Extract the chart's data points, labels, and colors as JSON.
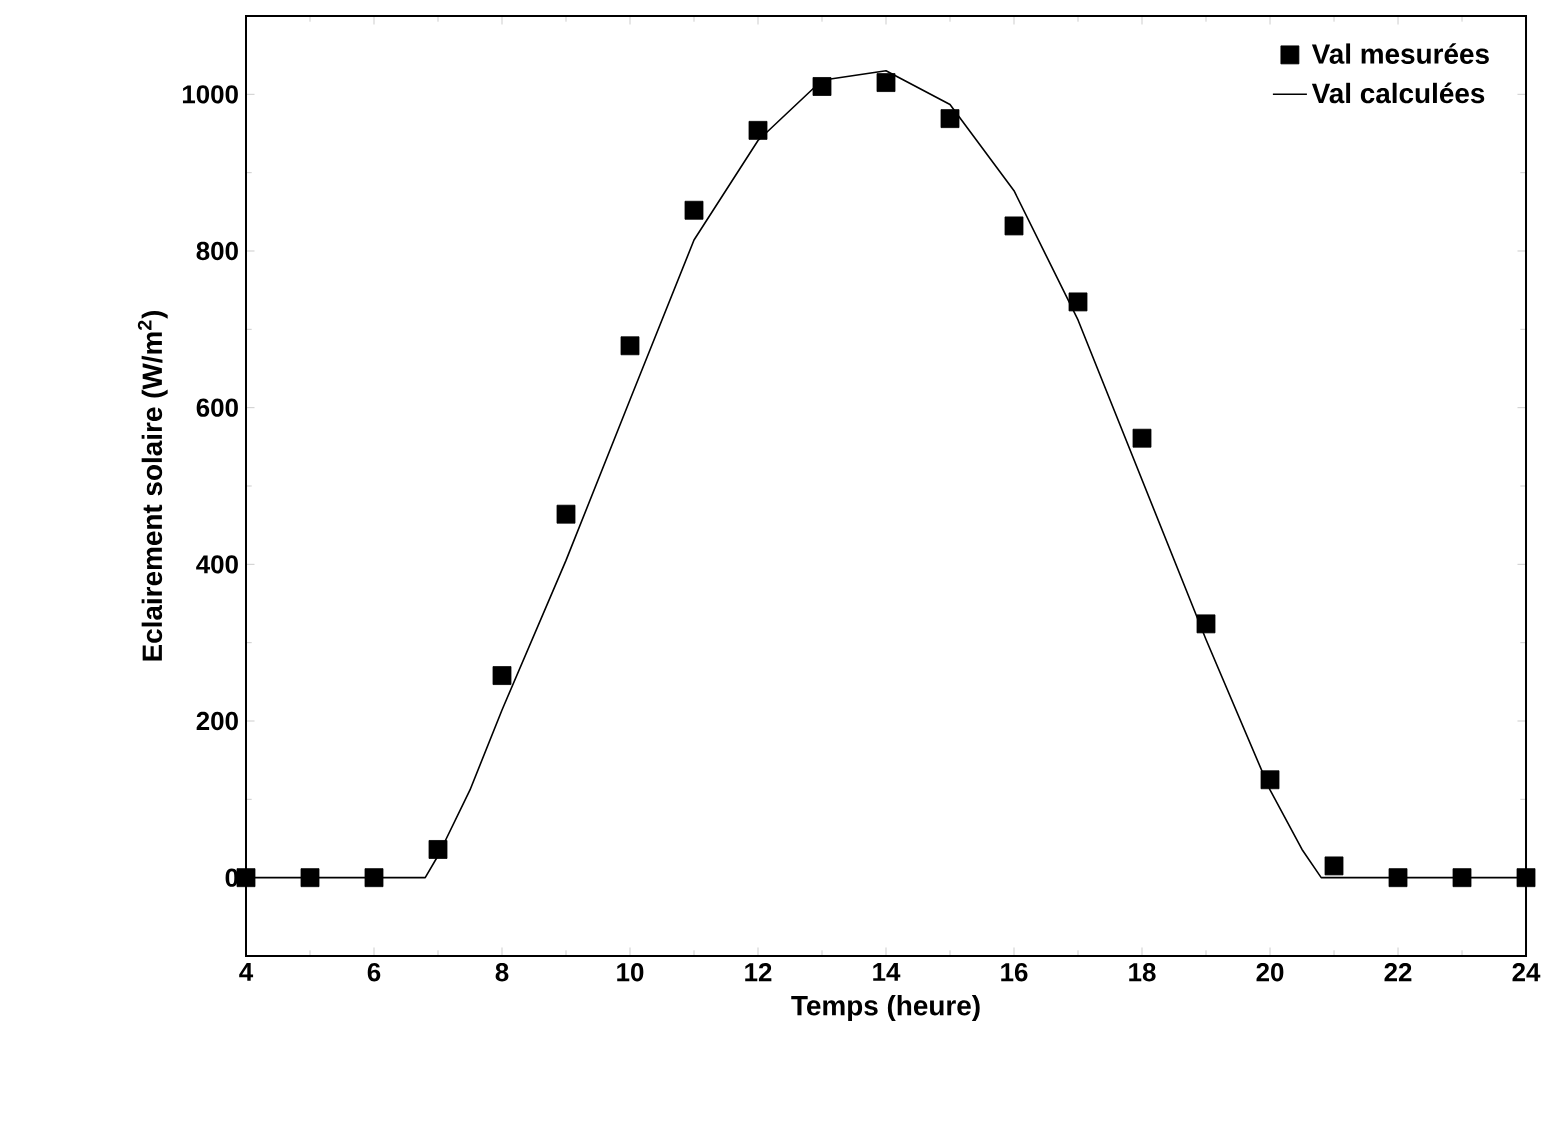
{
  "chart_data": {
    "type": "scatter",
    "xlabel": "Temps (heure)",
    "ylabel": "Eclairement solaire (W/m$^{2}$)",
    "xlim": [
      4,
      24
    ],
    "ylim": [
      -100,
      1100
    ],
    "xticks": [
      4,
      6,
      8,
      10,
      12,
      14,
      16,
      18,
      20,
      22,
      24
    ],
    "yticks": [
      0,
      200,
      400,
      600,
      800,
      1000
    ],
    "grid": false,
    "legend": "top right",
    "series": [
      {
        "name": "Val mesurées",
        "marker": "square",
        "color": "#000000",
        "x": [
          4,
          5,
          6,
          7,
          8,
          9,
          10,
          11,
          12,
          13,
          14,
          15,
          16,
          17,
          18,
          19,
          20,
          21,
          22,
          23,
          24
        ],
        "values": [
          0,
          0,
          0,
          36,
          258,
          464,
          679,
          852,
          954,
          1010,
          1015,
          969,
          832,
          735,
          561,
          324,
          125,
          15,
          0,
          0,
          0
        ]
      },
      {
        "name": "Val calculées",
        "type": "line",
        "marker": "none",
        "line_style": "solid",
        "color": "#000000",
        "x": [
          4,
          6.8,
          7,
          7.5,
          8,
          9,
          10,
          11,
          12,
          13,
          14,
          15,
          16,
          17,
          18,
          19,
          20,
          20.5,
          20.8,
          24
        ],
        "values": [
          0,
          0,
          28,
          112,
          214,
          405,
          610,
          814,
          941,
          1018,
          1030,
          987,
          877,
          712,
          508,
          304,
          112,
          36,
          0,
          0
        ]
      }
    ]
  }
}
